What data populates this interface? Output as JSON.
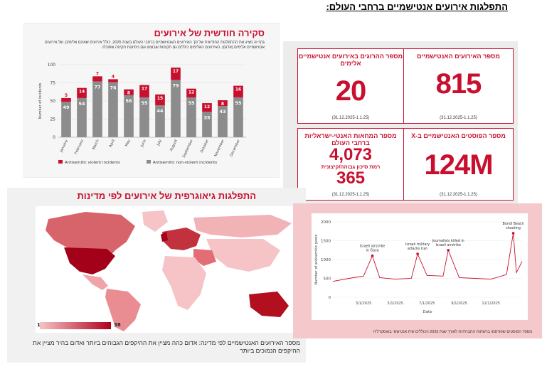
{
  "page": {
    "title": "התפלגות אירועים אנטישמיים ברחבי העולם:"
  },
  "monthly": {
    "title": "סקירה חודשית של אירועים",
    "description": "גרף זה מציג את ההתפלגות החודשית של סך האירועים האנטישמיים ברחבי העולם בשנת 2025, כולל אירועים שאינם אלימים, של אירועים אנטישמיים אלימים (אדום). האירועים האלימים כוללים גם תקיפות שבוצעו וגם ניסיונות תקיפה שסוכלו.",
    "ylabel": "Number of incidents",
    "legend_violent": "Antisemitic violent incidents",
    "legend_nonviolent": "Antisemitic non-violent incidents",
    "chart_data": {
      "type": "bar",
      "stacked": true,
      "categories": [
        "January",
        "February",
        "March",
        "April",
        "May",
        "June",
        "July",
        "August",
        "September",
        "October",
        "November",
        "December"
      ],
      "series": [
        {
          "name": "Antisemitic non-violent incidents",
          "values": [
            49,
            54,
            77,
            76,
            58,
            55,
            44,
            79,
            55,
            35,
            43,
            55
          ]
        },
        {
          "name": "Antisemitic violent incidents",
          "values": [
            5,
            14,
            7,
            4,
            8,
            17,
            15,
            17,
            12,
            12,
            8,
            16
          ]
        }
      ],
      "yticks": [
        0,
        25,
        50,
        75,
        100
      ],
      "ylim": [
        0,
        100
      ],
      "colors": {
        "violent": "#c8102e",
        "nonviolent": "#8c8c8c"
      }
    }
  },
  "stats": {
    "cards": [
      {
        "label": "מספר האירועים האנטישמיים",
        "value": "815",
        "period": "(31.12.2025-1.1.25)"
      },
      {
        "label": "מספר ההרוגים באירועים אנטישמיים אלימים",
        "value": "20",
        "period": "(31.12.2025-1.1.25)"
      },
      {
        "label": "מספר הפוסטים האנטישמיים ב-X",
        "value": "124M",
        "period": "(31.12.2025-1.1.25)"
      },
      {
        "label": "מספר המחאות האנטי-ישראליות ברחבי העולם",
        "value": "4,073",
        "sub": "רמת סיכון גבוהה/קיצונית",
        "value2": "365",
        "period": "(31.12.2025-1.1.25)"
      }
    ]
  },
  "map": {
    "title": "התפלגות גיאוגרפית של אירועים לפי מדינות",
    "legend_min": "1",
    "legend_max": "38",
    "caption": "מספר האירועים האנטישמיים לפי מדינה: אדום כהה מציין את ההיקפים הגבוהים ביותר ואדום בהיר מציין את ההיקפים הנמוכים ביותר",
    "colors": {
      "low": "#f6c4c6",
      "high": "#b0001c"
    }
  },
  "timeline": {
    "ylabel": "Number of antisemitic posts",
    "xlabel": "Date",
    "caption": "מספר הפוסטים שפורסמו ברשתות החברתיות לאורך שנת 2025 הכוללים שיח אנטישמי באוסטרליה",
    "yticks": [
      0,
      500,
      1000,
      1500,
      2000
    ],
    "xticks": [
      "3/1/2025",
      "5/1/2025",
      "7/1/2025",
      "9/1/2025",
      "11/1/2025"
    ],
    "annotations": [
      "Israeli airstrike in Gaza",
      "Israeli military attacks Iran",
      "Journalists killed in Israeli airstrike",
      "Bondi Beach shooting"
    ],
    "chart_data": {
      "type": "line",
      "ylim": [
        0,
        2000
      ],
      "x": [
        "2025-01-01",
        "2025-02-01",
        "2025-03-01",
        "2025-03-18",
        "2025-04-01",
        "2025-05-01",
        "2025-06-01",
        "2025-06-13",
        "2025-07-01",
        "2025-08-01",
        "2025-08-11",
        "2025-09-01",
        "2025-10-01",
        "2025-11-01",
        "2025-12-01",
        "2025-12-14",
        "2025-12-20",
        "2025-12-31"
      ],
      "values": [
        420,
        500,
        560,
        1100,
        520,
        480,
        500,
        1150,
        580,
        560,
        1250,
        520,
        500,
        480,
        600,
        1700,
        650,
        950
      ],
      "color": "#c8102e"
    }
  }
}
